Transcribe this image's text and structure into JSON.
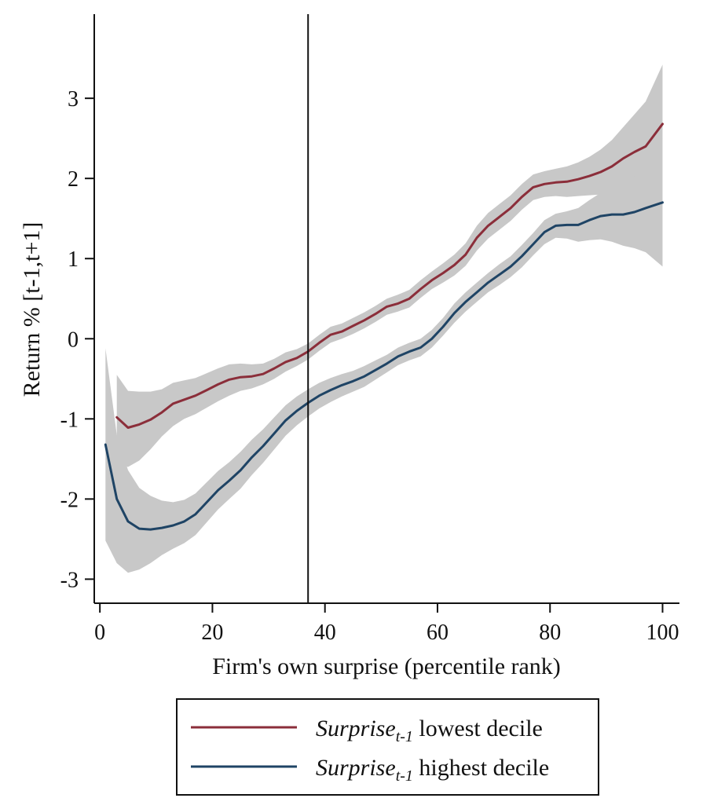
{
  "chart_data": {
    "type": "line",
    "title": "",
    "xlabel": "Firm's own surprise (percentile rank)",
    "ylabel": "Return % [t-1,t+1]",
    "xlim": [
      -1,
      103
    ],
    "ylim": [
      -3.3,
      4.05
    ],
    "xticks": [
      0,
      20,
      40,
      60,
      80,
      100
    ],
    "xtick_labels": [
      "0",
      "20",
      "40",
      "60",
      "80",
      "100"
    ],
    "yticks": [
      -3,
      -2,
      -1,
      0,
      1,
      2,
      3
    ],
    "ytick_labels": [
      "-3",
      "-2",
      "-1",
      "0",
      "1",
      "2",
      "3"
    ],
    "grid": false,
    "reference_line_x": 37,
    "legend_position": "bottom",
    "series": [
      {
        "legend_main": "Surprise",
        "legend_sub": "t-1",
        "legend_rest": " lowest decile",
        "color": "#8b2e3a",
        "band_color": "#c8c8c8",
        "x": [
          3,
          5,
          7,
          9,
          11,
          13,
          15,
          17,
          19,
          21,
          23,
          25,
          27,
          29,
          31,
          33,
          35,
          37,
          39,
          41,
          43,
          45,
          47,
          49,
          51,
          53,
          55,
          57,
          59,
          61,
          63,
          65,
          67,
          69,
          71,
          73,
          75,
          77,
          79,
          81,
          83,
          85,
          87,
          89,
          91,
          93,
          95,
          97,
          100
        ],
        "y": [
          -0.98,
          -1.11,
          -1.07,
          -1.01,
          -0.92,
          -0.81,
          -0.76,
          -0.71,
          -0.64,
          -0.57,
          -0.51,
          -0.48,
          -0.47,
          -0.44,
          -0.37,
          -0.29,
          -0.24,
          -0.16,
          -0.05,
          0.05,
          0.09,
          0.16,
          0.23,
          0.31,
          0.4,
          0.44,
          0.5,
          0.62,
          0.73,
          0.82,
          0.92,
          1.05,
          1.26,
          1.41,
          1.52,
          1.63,
          1.77,
          1.89,
          1.93,
          1.95,
          1.96,
          1.99,
          2.03,
          2.08,
          2.15,
          2.25,
          2.33,
          2.4,
          2.68
        ],
        "lower": [
          -1.55,
          -1.6,
          -1.52,
          -1.38,
          -1.22,
          -1.09,
          -1.0,
          -0.94,
          -0.86,
          -0.78,
          -0.71,
          -0.65,
          -0.62,
          -0.57,
          -0.5,
          -0.41,
          -0.34,
          -0.26,
          -0.15,
          -0.05,
          0.0,
          0.06,
          0.13,
          0.21,
          0.3,
          0.34,
          0.39,
          0.51,
          0.62,
          0.7,
          0.79,
          0.91,
          1.1,
          1.25,
          1.36,
          1.47,
          1.61,
          1.73,
          1.77,
          1.78,
          1.77,
          1.78,
          1.79,
          1.8,
          1.82,
          1.86,
          1.86,
          1.84,
          1.95
        ],
        "upper": [
          -0.45,
          -0.65,
          -0.66,
          -0.66,
          -0.63,
          -0.55,
          -0.52,
          -0.49,
          -0.43,
          -0.37,
          -0.32,
          -0.31,
          -0.32,
          -0.31,
          -0.25,
          -0.17,
          -0.13,
          -0.06,
          0.05,
          0.15,
          0.19,
          0.26,
          0.33,
          0.41,
          0.5,
          0.55,
          0.61,
          0.73,
          0.84,
          0.94,
          1.05,
          1.19,
          1.41,
          1.57,
          1.68,
          1.79,
          1.93,
          2.05,
          2.09,
          2.12,
          2.15,
          2.2,
          2.27,
          2.36,
          2.48,
          2.64,
          2.8,
          2.96,
          3.42
        ]
      },
      {
        "legend_main": "Surprise",
        "legend_sub": "t-1",
        "legend_rest": " highest decile",
        "color": "#1f4465",
        "band_color": "#c8c8c8",
        "x": [
          1,
          3,
          5,
          7,
          9,
          11,
          13,
          15,
          17,
          19,
          21,
          23,
          25,
          27,
          29,
          31,
          33,
          35,
          37,
          39,
          41,
          43,
          45,
          47,
          49,
          51,
          53,
          55,
          57,
          59,
          61,
          63,
          65,
          67,
          69,
          71,
          73,
          75,
          77,
          79,
          81,
          83,
          85,
          87,
          89,
          91,
          93,
          95,
          97,
          100
        ],
        "y": [
          -1.32,
          -2.0,
          -2.28,
          -2.37,
          -2.38,
          -2.36,
          -2.33,
          -2.28,
          -2.19,
          -2.04,
          -1.89,
          -1.77,
          -1.64,
          -1.48,
          -1.34,
          -1.18,
          -1.02,
          -0.9,
          -0.8,
          -0.71,
          -0.64,
          -0.58,
          -0.53,
          -0.47,
          -0.39,
          -0.31,
          -0.22,
          -0.16,
          -0.11,
          0.0,
          0.15,
          0.32,
          0.46,
          0.58,
          0.7,
          0.8,
          0.9,
          1.03,
          1.18,
          1.33,
          1.41,
          1.42,
          1.42,
          1.48,
          1.53,
          1.55,
          1.55,
          1.58,
          1.63,
          1.7
        ],
        "lower": [
          -2.52,
          -2.8,
          -2.92,
          -2.88,
          -2.8,
          -2.7,
          -2.62,
          -2.55,
          -2.45,
          -2.29,
          -2.13,
          -2.0,
          -1.87,
          -1.7,
          -1.55,
          -1.38,
          -1.21,
          -1.08,
          -0.97,
          -0.87,
          -0.79,
          -0.72,
          -0.66,
          -0.6,
          -0.51,
          -0.42,
          -0.33,
          -0.27,
          -0.22,
          -0.11,
          0.04,
          0.2,
          0.34,
          0.46,
          0.58,
          0.67,
          0.77,
          0.89,
          1.04,
          1.18,
          1.26,
          1.25,
          1.21,
          1.23,
          1.24,
          1.21,
          1.16,
          1.13,
          1.08,
          0.9
        ],
        "upper": [
          -0.12,
          -1.2,
          -1.64,
          -1.86,
          -1.96,
          -2.02,
          -2.04,
          -2.01,
          -1.93,
          -1.79,
          -1.65,
          -1.54,
          -1.41,
          -1.26,
          -1.13,
          -0.98,
          -0.83,
          -0.72,
          -0.63,
          -0.55,
          -0.49,
          -0.44,
          -0.4,
          -0.34,
          -0.27,
          -0.2,
          -0.11,
          -0.05,
          0.0,
          0.11,
          0.26,
          0.44,
          0.58,
          0.7,
          0.82,
          0.93,
          1.03,
          1.17,
          1.32,
          1.48,
          1.56,
          1.59,
          1.63,
          1.73,
          1.82,
          1.89,
          1.94,
          2.03,
          2.18,
          2.5
        ]
      }
    ]
  }
}
